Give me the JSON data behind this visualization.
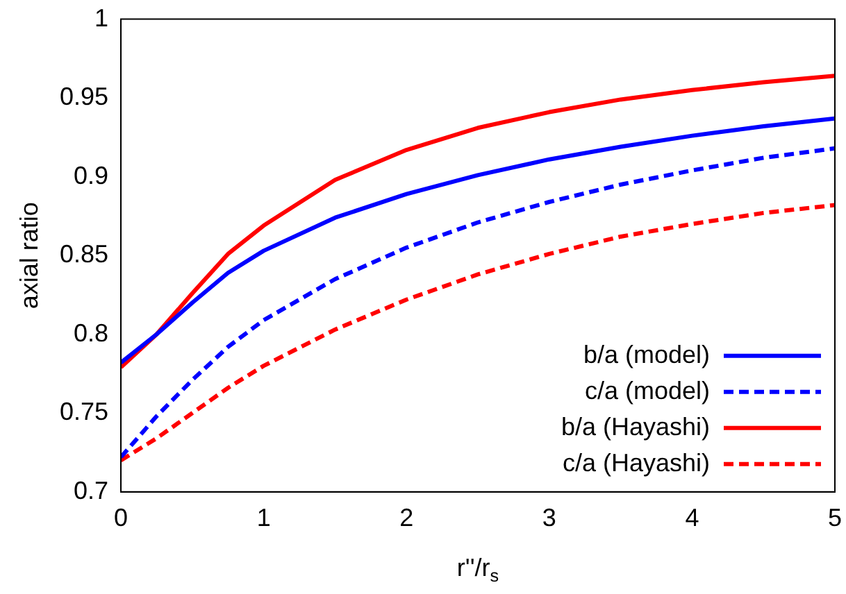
{
  "chart_data": {
    "type": "line",
    "xlabel": "r''/r$_{s}$",
    "ylabel": "axial ratio",
    "x": [
      0,
      0.25,
      0.5,
      0.75,
      1,
      1.5,
      2,
      2.5,
      3,
      3.5,
      4,
      4.5,
      5
    ],
    "series": [
      {
        "name": "b/a (model)",
        "color": "#0000ff",
        "line_style": "solid",
        "values": [
          0.782,
          0.8,
          0.82,
          0.839,
          0.853,
          0.874,
          0.889,
          0.901,
          0.911,
          0.919,
          0.926,
          0.932,
          0.937
        ]
      },
      {
        "name": "c/a (model)",
        "color": "#0000ff",
        "line_style": "dashed",
        "values": [
          0.722,
          0.748,
          0.771,
          0.792,
          0.809,
          0.835,
          0.855,
          0.871,
          0.884,
          0.895,
          0.904,
          0.912,
          0.918
        ]
      },
      {
        "name": "b/a (Hayashi)",
        "color": "#ff0000",
        "line_style": "solid",
        "values": [
          0.779,
          0.8,
          0.826,
          0.851,
          0.869,
          0.898,
          0.917,
          0.931,
          0.941,
          0.949,
          0.955,
          0.96,
          0.964
        ]
      },
      {
        "name": "c/a (Hayashi)",
        "color": "#ff0000",
        "line_style": "dashed",
        "values": [
          0.72,
          0.734,
          0.75,
          0.766,
          0.78,
          0.803,
          0.822,
          0.838,
          0.851,
          0.862,
          0.87,
          0.877,
          0.882
        ]
      }
    ],
    "xlim": [
      0,
      5
    ],
    "xticks": [
      0,
      1,
      2,
      3,
      4,
      5
    ],
    "ylim": [
      0.7,
      1
    ],
    "yticks": [
      0.7,
      0.75,
      0.8,
      0.85,
      0.9,
      0.95,
      1
    ],
    "grid": false,
    "legend": "bottom right",
    "marker": "none"
  }
}
